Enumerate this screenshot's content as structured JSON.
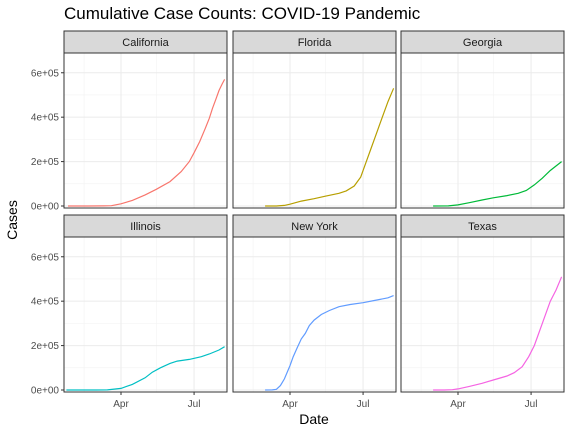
{
  "chart_data": {
    "type": "line",
    "title": "Cumulative Case Counts: COVID-19 Pandemic",
    "xlabel": "Date",
    "ylabel": "Cases",
    "facet_layout": "2 rows x 3 columns, shared axes",
    "x_ticks": [
      "Apr",
      "Jul"
    ],
    "y_ticks": [
      "0e+00",
      "2e+05",
      "4e+05",
      "6e+05"
    ],
    "ylim": [
      0,
      680000
    ],
    "xlim": [
      "2020-01-21",
      "2020-08-01"
    ],
    "grid": true,
    "panels": [
      {
        "name": "California",
        "color": "#F8766D",
        "points": [
          [
            "2020-01-26",
            0
          ],
          [
            "2020-02-20",
            50
          ],
          [
            "2020-03-10",
            300
          ],
          [
            "2020-03-20",
            1500
          ],
          [
            "2020-04-01",
            10000
          ],
          [
            "2020-04-15",
            25000
          ],
          [
            "2020-05-01",
            50000
          ],
          [
            "2020-05-15",
            75000
          ],
          [
            "2020-06-01",
            110000
          ],
          [
            "2020-06-15",
            155000
          ],
          [
            "2020-06-25",
            200000
          ],
          [
            "2020-07-01",
            240000
          ],
          [
            "2020-07-08",
            290000
          ],
          [
            "2020-07-15",
            350000
          ],
          [
            "2020-07-20",
            395000
          ],
          [
            "2020-07-24",
            440000
          ],
          [
            "2020-07-28",
            480000
          ],
          [
            "2020-08-01",
            520000
          ],
          [
            "2020-08-05",
            550000
          ],
          [
            "2020-08-08",
            570000
          ]
        ]
      },
      {
        "name": "Florida",
        "color": "#B79F00",
        "points": [
          [
            "2020-03-01",
            0
          ],
          [
            "2020-03-15",
            200
          ],
          [
            "2020-03-25",
            2500
          ],
          [
            "2020-04-01",
            8000
          ],
          [
            "2020-04-15",
            22000
          ],
          [
            "2020-05-01",
            33000
          ],
          [
            "2020-05-15",
            44000
          ],
          [
            "2020-06-01",
            57000
          ],
          [
            "2020-06-10",
            68000
          ],
          [
            "2020-06-20",
            90000
          ],
          [
            "2020-06-28",
            130000
          ],
          [
            "2020-07-05",
            200000
          ],
          [
            "2020-07-10",
            250000
          ],
          [
            "2020-07-15",
            300000
          ],
          [
            "2020-07-20",
            350000
          ],
          [
            "2020-07-25",
            400000
          ],
          [
            "2020-08-01",
            470000
          ],
          [
            "2020-08-08",
            530000
          ]
        ]
      },
      {
        "name": "Georgia",
        "color": "#00BA38",
        "points": [
          [
            "2020-03-01",
            0
          ],
          [
            "2020-03-20",
            300
          ],
          [
            "2020-04-01",
            5000
          ],
          [
            "2020-04-15",
            15000
          ],
          [
            "2020-05-01",
            27000
          ],
          [
            "2020-05-15",
            37000
          ],
          [
            "2020-06-01",
            47000
          ],
          [
            "2020-06-15",
            57000
          ],
          [
            "2020-06-25",
            70000
          ],
          [
            "2020-07-05",
            95000
          ],
          [
            "2020-07-15",
            125000
          ],
          [
            "2020-07-25",
            160000
          ],
          [
            "2020-08-01",
            180000
          ],
          [
            "2020-08-08",
            200000
          ]
        ]
      },
      {
        "name": "Illinois",
        "color": "#00BFC4",
        "points": [
          [
            "2020-01-24",
            0
          ],
          [
            "2020-03-01",
            100
          ],
          [
            "2020-03-15",
            500
          ],
          [
            "2020-04-01",
            7000
          ],
          [
            "2020-04-15",
            25000
          ],
          [
            "2020-05-01",
            55000
          ],
          [
            "2020-05-10",
            80000
          ],
          [
            "2020-05-20",
            100000
          ],
          [
            "2020-06-01",
            120000
          ],
          [
            "2020-06-10",
            130000
          ],
          [
            "2020-06-25",
            138000
          ],
          [
            "2020-07-10",
            150000
          ],
          [
            "2020-07-20",
            162000
          ],
          [
            "2020-08-01",
            180000
          ],
          [
            "2020-08-08",
            195000
          ]
        ]
      },
      {
        "name": "New York",
        "color": "#619CFF",
        "points": [
          [
            "2020-03-01",
            0
          ],
          [
            "2020-03-10",
            500
          ],
          [
            "2020-03-15",
            3000
          ],
          [
            "2020-03-20",
            20000
          ],
          [
            "2020-03-25",
            50000
          ],
          [
            "2020-04-01",
            110000
          ],
          [
            "2020-04-05",
            150000
          ],
          [
            "2020-04-10",
            190000
          ],
          [
            "2020-04-15",
            230000
          ],
          [
            "2020-04-20",
            255000
          ],
          [
            "2020-04-25",
            290000
          ],
          [
            "2020-05-01",
            315000
          ],
          [
            "2020-05-10",
            340000
          ],
          [
            "2020-05-20",
            358000
          ],
          [
            "2020-06-01",
            375000
          ],
          [
            "2020-06-15",
            385000
          ],
          [
            "2020-07-01",
            393000
          ],
          [
            "2020-07-15",
            403000
          ],
          [
            "2020-08-01",
            415000
          ],
          [
            "2020-08-08",
            425000
          ]
        ]
      },
      {
        "name": "Texas",
        "color": "#F564E3",
        "points": [
          [
            "2020-03-01",
            0
          ],
          [
            "2020-03-15",
            100
          ],
          [
            "2020-03-25",
            1500
          ],
          [
            "2020-04-01",
            5000
          ],
          [
            "2020-04-15",
            16000
          ],
          [
            "2020-05-01",
            30000
          ],
          [
            "2020-05-15",
            45000
          ],
          [
            "2020-06-01",
            63000
          ],
          [
            "2020-06-10",
            78000
          ],
          [
            "2020-06-20",
            105000
          ],
          [
            "2020-06-28",
            150000
          ],
          [
            "2020-07-05",
            200000
          ],
          [
            "2020-07-10",
            250000
          ],
          [
            "2020-07-15",
            300000
          ],
          [
            "2020-07-20",
            350000
          ],
          [
            "2020-07-25",
            400000
          ],
          [
            "2020-08-01",
            450000
          ],
          [
            "2020-08-08",
            510000
          ]
        ]
      }
    ]
  }
}
